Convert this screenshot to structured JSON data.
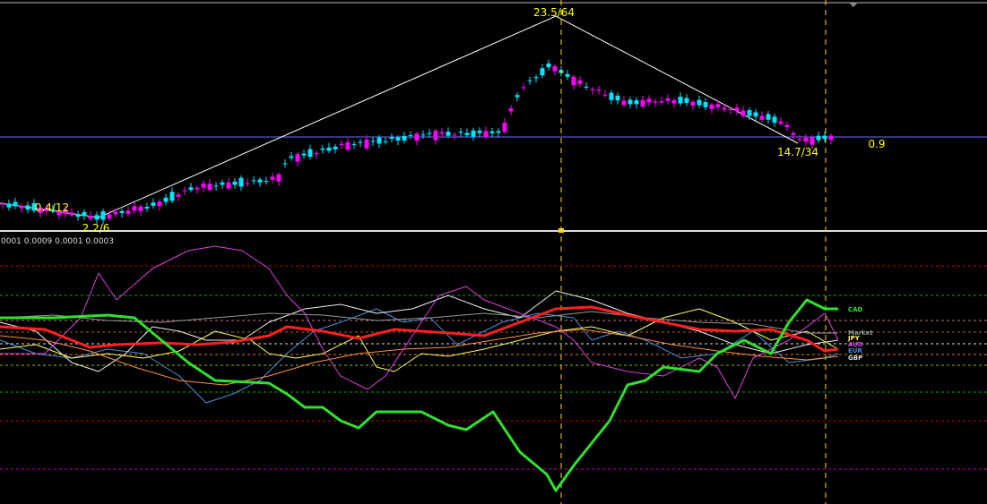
{
  "price_panel": {
    "zigzag_labels": [
      "0.4/12",
      "2.2/6",
      "23.5/64",
      "14.7/34"
    ],
    "price_line_label": "0.9"
  },
  "indicator_panel": {
    "header": "0001 0.0009 0.0001 0.0003",
    "currency_labels": [
      "CAD",
      "Market",
      "JPY",
      "AUD",
      "EUR",
      "GBP"
    ]
  }
}
